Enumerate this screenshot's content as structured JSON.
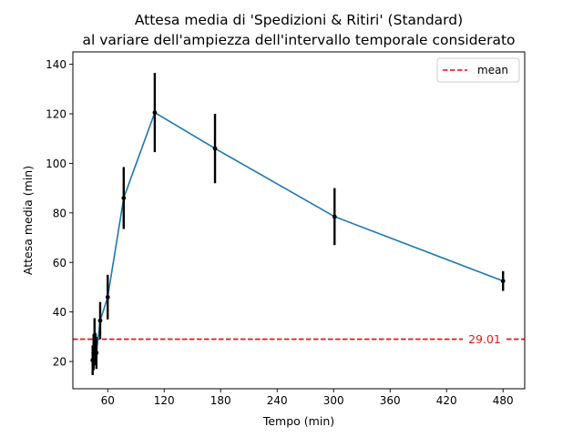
{
  "chart_data": {
    "type": "line",
    "title_lines": [
      "Attesa media di 'Spedizioni & Ritiri' (Standard)",
      "al variare dell'ampiezza dell'intervallo temporale considerato"
    ],
    "xlabel": "Tempo (min)",
    "ylabel": "Attesa media (min)",
    "xlim": [
      23,
      503
    ],
    "ylim": [
      9,
      145
    ],
    "xticks": [
      60,
      120,
      180,
      240,
      300,
      360,
      420,
      480
    ],
    "yticks": [
      20,
      40,
      60,
      80,
      100,
      120,
      140
    ],
    "grid": false,
    "series": [
      {
        "color": "#1f77b4",
        "x": [
          44,
          45,
          46,
          47,
          48,
          52,
          60,
          77,
          110,
          174,
          301,
          480
        ],
        "y": [
          20.5,
          23.5,
          30.5,
          25,
          23.5,
          36.5,
          46,
          86,
          120.5,
          106,
          78.5,
          52.5
        ],
        "err": [
          6,
          7,
          7,
          6.5,
          6.5,
          7.5,
          9,
          12.5,
          16,
          14,
          11.5,
          4
        ]
      }
    ],
    "mean_line": {
      "value": 29.01,
      "label": "29.01",
      "color": "#ff0000",
      "legend": "mean"
    },
    "legend_position": "top-right"
  }
}
